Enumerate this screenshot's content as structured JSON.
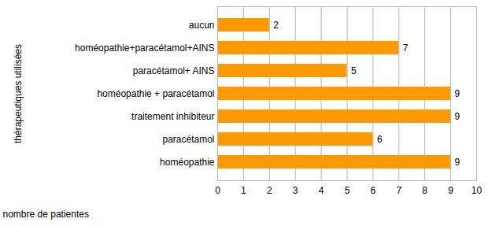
{
  "chart_data": {
    "type": "bar",
    "orientation": "horizontal",
    "categories": [
      "aucun",
      "homéopathie+paracétamol+AINS",
      "paracétamol+ AINS",
      "homéopathie + paracétamol",
      "traitement inhibiteur",
      "paracétamol",
      "homéopathie"
    ],
    "values": [
      2,
      7,
      5,
      9,
      9,
      6,
      9
    ],
    "color": "#ff9900",
    "x_label": "nombre de patientes",
    "y_label": "thérapeutiques utilisées",
    "xlim": [
      0,
      10
    ],
    "xticks": [
      0,
      1,
      2,
      3,
      4,
      5,
      6,
      7,
      8,
      9,
      10
    ],
    "grid": true,
    "data_labels": true
  }
}
